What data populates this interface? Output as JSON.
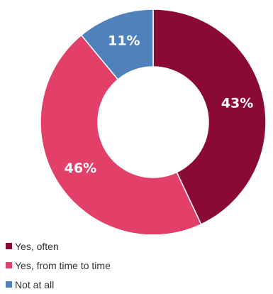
{
  "chart_data": {
    "type": "pie",
    "hole": "donut",
    "categories": [
      "Yes, often",
      "Yes, from time to time",
      "Not at all"
    ],
    "values": [
      43,
      46,
      11
    ],
    "value_labels": [
      "43%",
      "46%",
      "11%"
    ],
    "colors": [
      "#8b0a35",
      "#e23f69",
      "#4f81bd"
    ],
    "legend_position": "bottom-left",
    "title": ""
  }
}
